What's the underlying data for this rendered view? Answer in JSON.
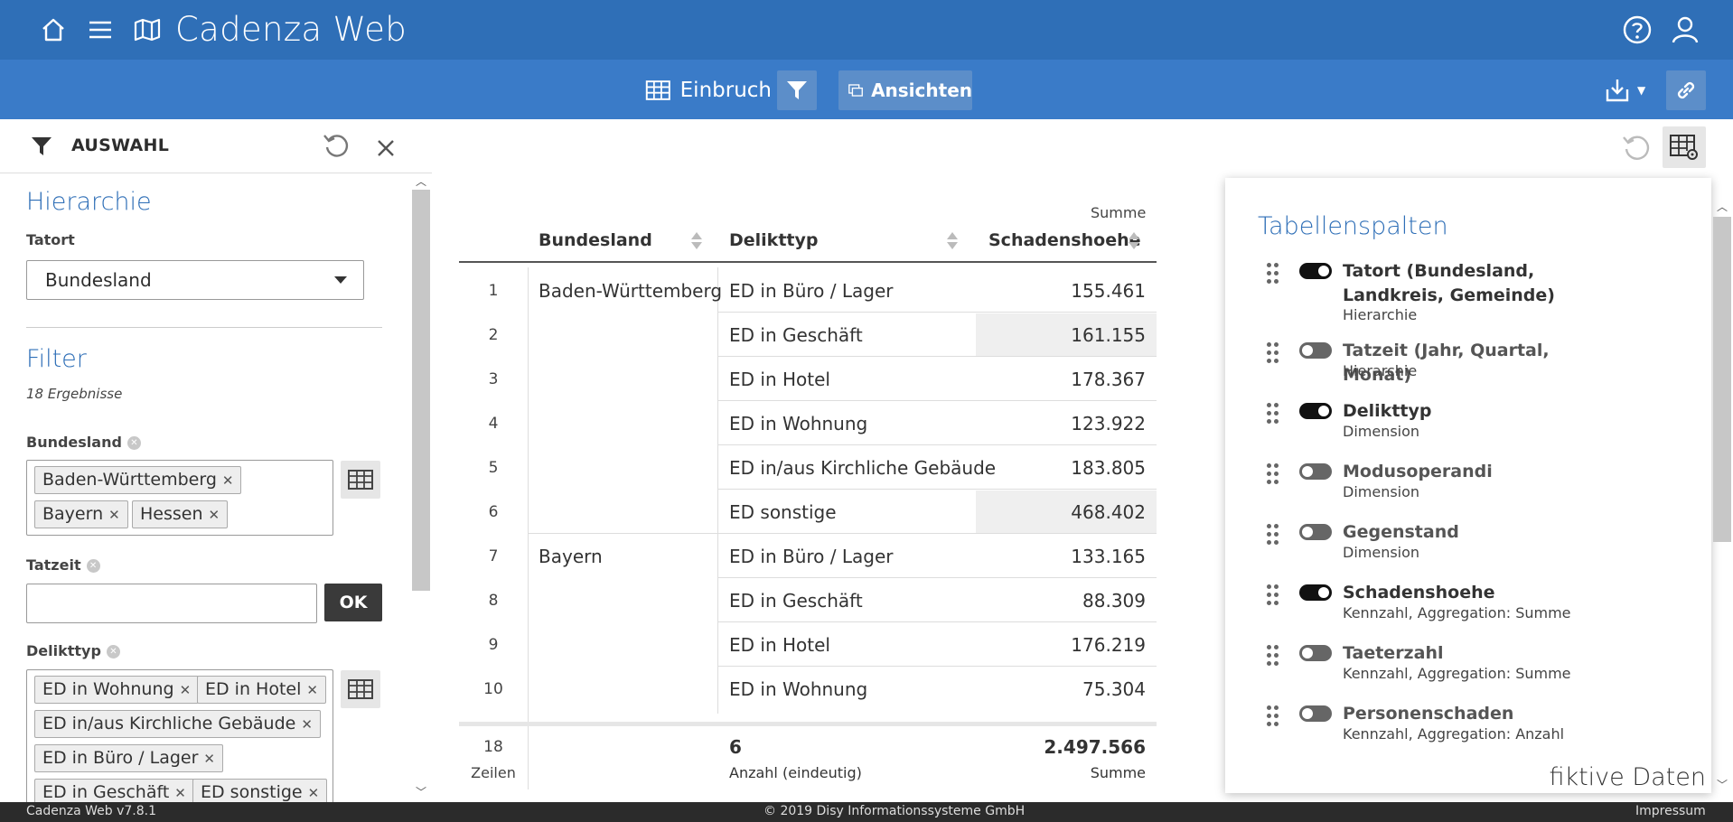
{
  "header": {
    "title": "Cadenza Web"
  },
  "toolbar": {
    "view_label": "Einbruch",
    "ansichten_label": "Ansichten"
  },
  "left_panel": {
    "header_label": "AUSWAHL",
    "hierarchie": {
      "title": "Hierarchie",
      "label": "Tatort",
      "selected": "Bundesland"
    },
    "filter": {
      "title": "Filter",
      "results": "18  Ergebnisse",
      "bundesland": {
        "label": "Bundesland",
        "tags": [
          "Baden-Württemberg",
          "Bayern",
          "Hessen"
        ]
      },
      "tatzeit": {
        "label": "Tatzeit",
        "value": "",
        "ok_label": "OK"
      },
      "delikttyp": {
        "label": "Delikttyp",
        "tags": [
          "ED in Wohnung",
          "ED in Hotel",
          "ED in/aus Kirchliche Gebäude",
          "ED in Büro / Lager",
          "ED in Geschäft",
          "ED sonstige"
        ]
      }
    }
  },
  "table": {
    "summe_caption": "Summe",
    "headers": [
      "Bundesland",
      "Delikttyp",
      "Schadenshoehe"
    ],
    "rows": [
      {
        "n": "1",
        "bundesland": "Baden-Württemberg",
        "delikttyp": "ED in Büro / Lager",
        "wert": "155.461"
      },
      {
        "n": "2",
        "bundesland": "",
        "delikttyp": "ED in Geschäft",
        "wert": "161.155"
      },
      {
        "n": "3",
        "bundesland": "",
        "delikttyp": "ED in Hotel",
        "wert": "178.367"
      },
      {
        "n": "4",
        "bundesland": "",
        "delikttyp": "ED in Wohnung",
        "wert": "123.922"
      },
      {
        "n": "5",
        "bundesland": "",
        "delikttyp": "ED in/aus Kirchliche Gebäude",
        "wert": "183.805"
      },
      {
        "n": "6",
        "bundesland": "",
        "delikttyp": "ED sonstige",
        "wert": "468.402"
      },
      {
        "n": "7",
        "bundesland": "Bayern",
        "delikttyp": "ED in Büro / Lager",
        "wert": "133.165"
      },
      {
        "n": "8",
        "bundesland": "",
        "delikttyp": "ED in Geschäft",
        "wert": "88.309"
      },
      {
        "n": "9",
        "bundesland": "",
        "delikttyp": "ED in Hotel",
        "wert": "176.219"
      },
      {
        "n": "10",
        "bundesland": "",
        "delikttyp": "ED in Wohnung",
        "wert": "75.304"
      }
    ],
    "footer": {
      "rows_count": "18",
      "rows_label": "Zeilen",
      "delikt_count": "6",
      "delikt_label": "Anzahl (eindeutig)",
      "sum_value": "2.497.566",
      "sum_label": "Summe"
    }
  },
  "columns_panel": {
    "title": "Tabellenspalten",
    "items": [
      {
        "name": "Tatort (Bundesland, Landkreis, Gemeinde)",
        "type": "Hierarchie",
        "on": true
      },
      {
        "name": "Tatzeit (Jahr, Quartal, Monat)",
        "type": "Hierarchie",
        "on": false
      },
      {
        "name": "Delikttyp",
        "type": "Dimension",
        "on": true
      },
      {
        "name": "Modusoperandi",
        "type": "Dimension",
        "on": false
      },
      {
        "name": "Gegenstand",
        "type": "Dimension",
        "on": false
      },
      {
        "name": "Schadenshoehe",
        "type": "Kennzahl, Aggregation: Summe",
        "on": true
      },
      {
        "name": "Taeterzahl",
        "type": "Kennzahl, Aggregation: Summe",
        "on": false
      },
      {
        "name": "Personenschaden",
        "type": "Kennzahl, Aggregation: Anzahl",
        "on": false
      }
    ]
  },
  "watermark": "fiktive Daten",
  "footer": {
    "version": "Cadenza Web v7.8.1",
    "copyright": "© 2019 Disy Informationssysteme GmbH",
    "impressum": "Impressum"
  },
  "colors": {
    "header_bg": "#2f6fb7",
    "toolbar_bg": "#3a7bc8",
    "accent": "#2f6fb7"
  }
}
